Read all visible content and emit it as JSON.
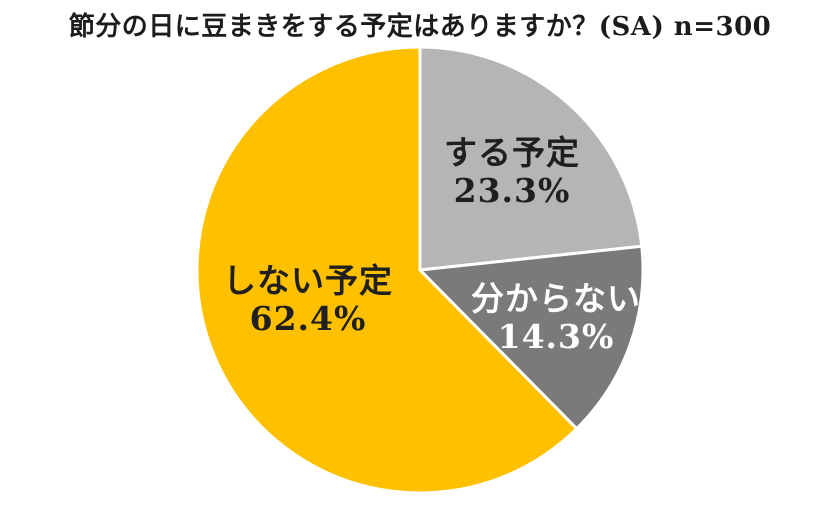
{
  "page": {
    "background_color": "#ffffff"
  },
  "chart_data": {
    "type": "pie",
    "title": "節分の日に豆まきをする予定はありますか？(SA) n=300",
    "sample_size": 300,
    "start_angle": "top",
    "direction": "clockwise",
    "legend": "none",
    "separator_color": "#ffffff",
    "separator_width": 3,
    "slices": [
      {
        "label": "する予定",
        "value": 23.3,
        "value_label": "23.3%",
        "color": "#b5b5b5",
        "text_color": "#1f1f1f"
      },
      {
        "label": "分からない",
        "value": 14.3,
        "value_label": "14.3%",
        "color": "#7a7a7a",
        "text_color": "#ffffff"
      },
      {
        "label": "しない予定",
        "value": 62.4,
        "value_label": "62.4%",
        "color": "#ffc000",
        "text_color": "#1f1f1f"
      }
    ]
  }
}
